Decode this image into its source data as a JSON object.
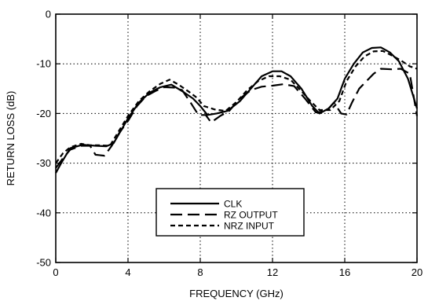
{
  "chart_data": {
    "type": "line",
    "title": "",
    "xlabel": "FREQUENCY (GHz)",
    "ylabel": "RETURN LOSS (dB)",
    "xlim": [
      0,
      20
    ],
    "ylim": [
      -50,
      0
    ],
    "xticks": [
      0,
      4,
      8,
      12,
      16,
      20
    ],
    "yticks": [
      0,
      -10,
      -20,
      -30,
      -40,
      -50
    ],
    "grid": "dotted",
    "legend": "center-bottom",
    "colors": {
      "line": "#000000",
      "grid": "#000000",
      "background": "#ffffff"
    },
    "series": [
      {
        "name": "CLK",
        "style": "solid",
        "points": [
          [
            0,
            -32
          ],
          [
            0.3,
            -30
          ],
          [
            0.8,
            -27
          ],
          [
            1.5,
            -26.3
          ],
          [
            2.2,
            -26.5
          ],
          [
            2.8,
            -26.6
          ],
          [
            3.2,
            -26
          ],
          [
            3.6,
            -23.5
          ],
          [
            4,
            -21
          ],
          [
            4.6,
            -17.8
          ],
          [
            5.2,
            -15.8
          ],
          [
            5.8,
            -14.7
          ],
          [
            6.4,
            -14.2
          ],
          [
            7,
            -15.5
          ],
          [
            7.6,
            -17
          ],
          [
            8,
            -18.5
          ],
          [
            8.4,
            -20.3
          ],
          [
            8.9,
            -20
          ],
          [
            9.5,
            -19.5
          ],
          [
            10.2,
            -17.5
          ],
          [
            10.8,
            -15
          ],
          [
            11.4,
            -12.5
          ],
          [
            12,
            -11.5
          ],
          [
            12.5,
            -11.5
          ],
          [
            13,
            -12.5
          ],
          [
            13.6,
            -15
          ],
          [
            14.2,
            -18.5
          ],
          [
            14.6,
            -20
          ],
          [
            15.1,
            -19
          ],
          [
            15.6,
            -17
          ],
          [
            16,
            -13
          ],
          [
            16.5,
            -10
          ],
          [
            17,
            -7.7
          ],
          [
            17.5,
            -6.8
          ],
          [
            18,
            -6.7
          ],
          [
            18.5,
            -7.7
          ],
          [
            19,
            -9.5
          ],
          [
            19.5,
            -13
          ],
          [
            20,
            -19
          ]
        ]
      },
      {
        "name": "RZ OUTPUT",
        "style": "long-dash",
        "points": [
          [
            0,
            -31
          ],
          [
            0.4,
            -29
          ],
          [
            0.8,
            -27.3
          ],
          [
            1.4,
            -26.5
          ],
          [
            1.9,
            -26.5
          ],
          [
            2.2,
            -28.3
          ],
          [
            2.7,
            -28.5
          ],
          [
            3.1,
            -26.5
          ],
          [
            3.5,
            -24
          ],
          [
            4,
            -21.5
          ],
          [
            4.5,
            -18.5
          ],
          [
            5,
            -16.5
          ],
          [
            5.5,
            -15.5
          ],
          [
            6,
            -14.7
          ],
          [
            6.6,
            -14.8
          ],
          [
            7,
            -15.3
          ],
          [
            7.5,
            -18
          ],
          [
            7.9,
            -20.3
          ],
          [
            8.3,
            -20.3
          ],
          [
            8.6,
            -21.8
          ],
          [
            9.1,
            -20.5
          ],
          [
            9.6,
            -19.5
          ],
          [
            10.2,
            -17
          ],
          [
            10.8,
            -15.3
          ],
          [
            11.4,
            -14.6
          ],
          [
            12,
            -14.4
          ],
          [
            12.6,
            -14.1
          ],
          [
            13.2,
            -14.5
          ],
          [
            13.8,
            -17
          ],
          [
            14.4,
            -19.8
          ],
          [
            15,
            -19.5
          ],
          [
            15.4,
            -17.8
          ],
          [
            15.8,
            -20
          ],
          [
            16.1,
            -20.2
          ],
          [
            16.4,
            -17.8
          ],
          [
            16.8,
            -15
          ],
          [
            17.2,
            -13.5
          ],
          [
            17.6,
            -12
          ],
          [
            18,
            -11
          ],
          [
            18.6,
            -11.1
          ],
          [
            19.1,
            -11
          ],
          [
            19.6,
            -12
          ],
          [
            20,
            -20.5
          ]
        ]
      },
      {
        "name": "NRZ INPUT",
        "style": "short-dash",
        "points": [
          [
            0,
            -30
          ],
          [
            0.4,
            -28
          ],
          [
            0.8,
            -26.8
          ],
          [
            1.4,
            -26.1
          ],
          [
            1.9,
            -26.4
          ],
          [
            2.4,
            -26.4
          ],
          [
            3,
            -26.5
          ],
          [
            3.5,
            -23.5
          ],
          [
            4,
            -20.5
          ],
          [
            4.6,
            -17.5
          ],
          [
            5.2,
            -15.5
          ],
          [
            5.8,
            -14
          ],
          [
            6.3,
            -13.2
          ],
          [
            6.8,
            -14.2
          ],
          [
            7.4,
            -15.7
          ],
          [
            7.8,
            -16.8
          ],
          [
            8.2,
            -18.5
          ],
          [
            8.8,
            -19.2
          ],
          [
            9.4,
            -19.5
          ],
          [
            10,
            -17.7
          ],
          [
            10.6,
            -15.3
          ],
          [
            11.2,
            -13.5
          ],
          [
            11.8,
            -12.5
          ],
          [
            12.4,
            -12.5
          ],
          [
            13,
            -13.2
          ],
          [
            13.6,
            -15.5
          ],
          [
            14.1,
            -17.5
          ],
          [
            14.6,
            -19.3
          ],
          [
            15.2,
            -19.3
          ],
          [
            15.7,
            -17.5
          ],
          [
            16.1,
            -13.5
          ],
          [
            16.6,
            -10.5
          ],
          [
            17.1,
            -8.5
          ],
          [
            17.6,
            -7.5
          ],
          [
            18.1,
            -7.4
          ],
          [
            18.6,
            -8.3
          ],
          [
            19.1,
            -9.3
          ],
          [
            19.6,
            -10.5
          ],
          [
            20,
            -11
          ]
        ]
      }
    ]
  }
}
